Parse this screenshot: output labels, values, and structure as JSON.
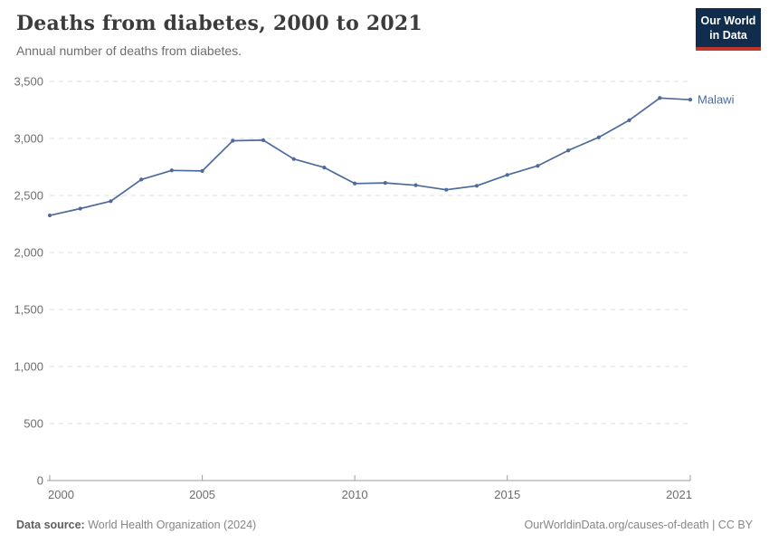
{
  "header": {
    "title": "Deaths from diabetes, 2000 to 2021",
    "subtitle": "Annual number of deaths from diabetes."
  },
  "logo": {
    "line1": "Our World",
    "line2": "in Data",
    "bg_color": "#102d4e",
    "bar_color": "#c0362b"
  },
  "chart_data": {
    "type": "line",
    "title": "Deaths from diabetes, 2000 to 2021",
    "x": [
      2000,
      2001,
      2002,
      2003,
      2004,
      2005,
      2006,
      2007,
      2008,
      2009,
      2010,
      2011,
      2012,
      2013,
      2014,
      2015,
      2016,
      2017,
      2018,
      2019,
      2020,
      2021
    ],
    "series": [
      {
        "name": "Malawi",
        "color": "#4c6a9c",
        "values": [
          2325,
          2385,
          2450,
          2640,
          2720,
          2715,
          2980,
          2985,
          2820,
          2745,
          2605,
          2610,
          2590,
          2550,
          2585,
          2680,
          2760,
          2895,
          3010,
          3160,
          3355,
          3340
        ]
      }
    ],
    "xlim": [
      2000,
      2021
    ],
    "ylim": [
      0,
      3500
    ],
    "yticks": [
      0,
      500,
      1000,
      1500,
      2000,
      2500,
      3000,
      3500
    ],
    "xticks": [
      2000,
      2005,
      2010,
      2015,
      2021
    ],
    "xlabel": "",
    "ylabel": "",
    "grid": "horizontal-dashed",
    "grid_color": "#dedede",
    "axis_color": "#9e9e9e",
    "legend": "end-of-line-label"
  },
  "footer": {
    "source_label": "Data source:",
    "source_value": "World Health Organization (2024)",
    "link": "OurWorldinData.org/causes-of-death",
    "separator": "|",
    "license": "CC BY"
  }
}
